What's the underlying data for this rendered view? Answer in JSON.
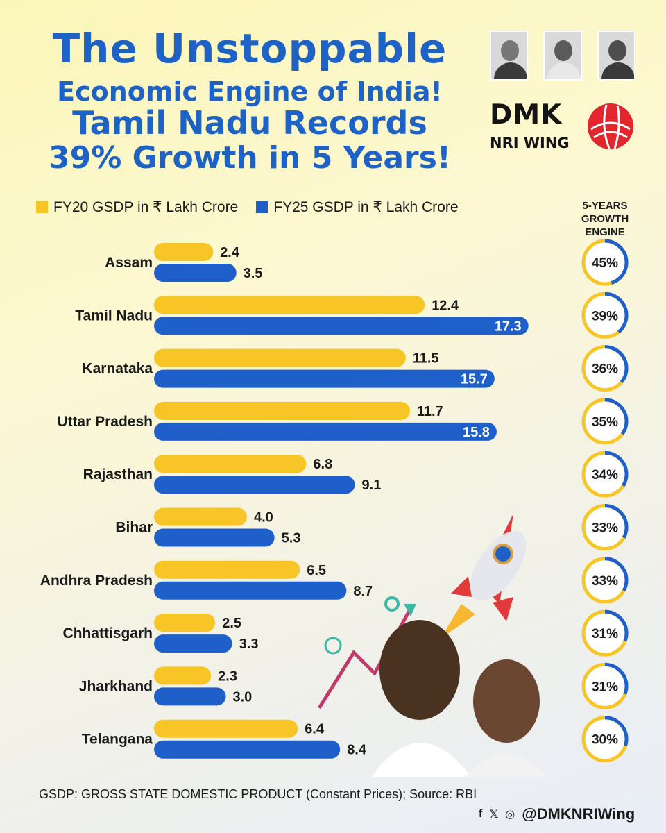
{
  "header": {
    "line1": "The Unstoppable",
    "line2": "Economic Engine of India!",
    "line3": "Tamil Nadu Records",
    "line4": "39% Growth in 5 Years!"
  },
  "brand": {
    "name": "DMK",
    "wing": "NRI WING",
    "logo_color": "#e3262d"
  },
  "growth_header": [
    "5-YEARS",
    "GROWTH",
    "ENGINE"
  ],
  "colors": {
    "fy20": "#f7c626",
    "fy25": "#1f5fca",
    "ring_track": "#f7c626",
    "ring_fill": "#1f5fca",
    "title": "#1d62c4"
  },
  "chart_data": {
    "type": "bar",
    "orientation": "horizontal",
    "categories": [
      "Assam",
      "Tamil Nadu",
      "Karnataka",
      "Uttar Pradesh",
      "Rajasthan",
      "Bihar",
      "Andhra Pradesh",
      "Chhattisgarh",
      "Jharkhand",
      "Telangana"
    ],
    "series": [
      {
        "name": "FY20 GSDP in ₹ Lakh Crore",
        "values": [
          2.4,
          12.4,
          11.5,
          11.7,
          6.8,
          4.0,
          6.5,
          2.5,
          2.3,
          6.4
        ],
        "labels": [
          "2.4",
          "12.4",
          "11.5",
          "11.7",
          "6.8",
          "4.0",
          "6.5",
          "2.5",
          "2.3",
          "6.4"
        ]
      },
      {
        "name": "FY25 GSDP in ₹ Lakh Crore",
        "values": [
          3.5,
          17.3,
          15.7,
          15.8,
          9.1,
          5.3,
          8.7,
          3.3,
          3.0,
          8.4
        ],
        "labels": [
          "3.5",
          "17.3",
          "15.7",
          "15.8",
          "9.1",
          "5.3",
          "8.7",
          "3.3",
          "3.0",
          "8.4"
        ]
      }
    ],
    "growth": [
      45,
      39,
      36,
      35,
      34,
      33,
      33,
      31,
      31,
      30
    ],
    "growth_labels": [
      "45%",
      "39%",
      "36%",
      "35%",
      "34%",
      "33%",
      "33%",
      "31%",
      "31%",
      "30%"
    ],
    "legend_position": "top-left",
    "grid": false
  },
  "footnote": "GSDP: GROSS STATE DOMESTIC PRODUCT (Constant Prices); Source: RBI",
  "social": {
    "handle": "@DMKNRIWing",
    "icons": [
      "facebook-icon",
      "x-icon",
      "instagram-icon"
    ],
    "icon_glyphs": [
      "f",
      "𝕏",
      "◎"
    ]
  }
}
